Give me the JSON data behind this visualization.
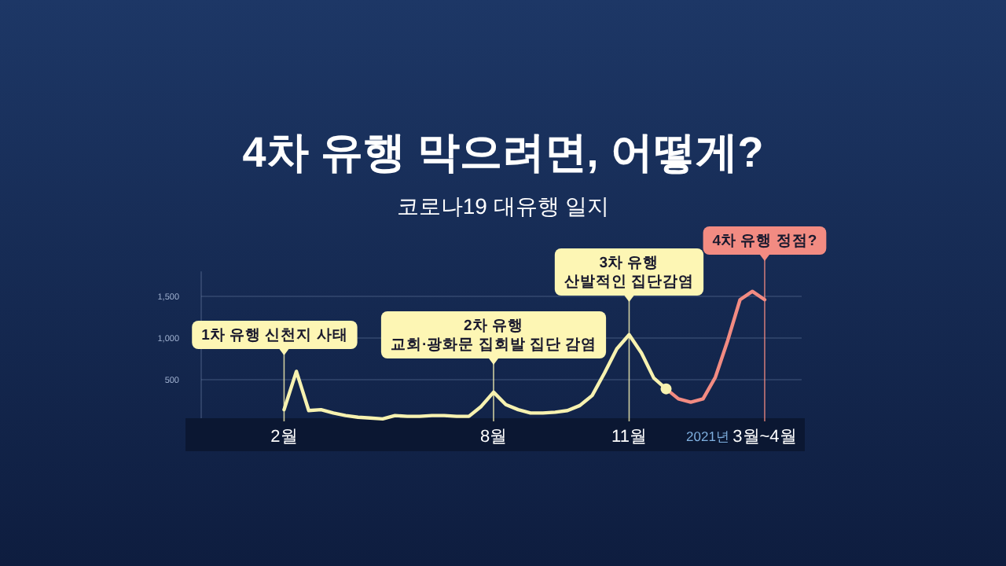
{
  "chart_data": {
    "type": "line",
    "title": "4차 유행 막으려면, 어떻게?",
    "subtitle": "코로나19 대유행 일지",
    "categories": [
      null,
      null,
      null,
      null,
      null,
      null,
      null,
      null,
      "2월",
      null,
      null,
      null,
      null,
      null,
      null,
      null,
      null,
      null,
      null,
      null,
      null,
      null,
      null,
      null,
      null,
      "8월",
      null,
      null,
      null,
      null,
      null,
      null,
      null,
      null,
      null,
      null,
      "11월",
      null,
      null,
      null,
      null,
      null,
      null,
      null,
      null,
      null,
      null,
      "3월~4월",
      null,
      null,
      null
    ],
    "ylim": [
      0,
      1800
    ],
    "yticks": [
      {
        "value": 500,
        "label": "500"
      },
      {
        "value": 1000,
        "label": "1,000"
      },
      {
        "value": 1500,
        "label": "1,500"
      }
    ],
    "grid": "y",
    "annotations": [
      "2021년"
    ],
    "series": [
      {
        "color": "#f7f2b0",
        "values": [
          null,
          null,
          null,
          null,
          null,
          null,
          null,
          null,
          140,
          600,
          130,
          140,
          100,
          70,
          50,
          40,
          30,
          70,
          60,
          60,
          70,
          70,
          60,
          60,
          180,
          350,
          200,
          140,
          100,
          100,
          110,
          130,
          190,
          310,
          580,
          870,
          1040,
          820,
          520,
          390,
          null,
          null,
          null,
          null,
          null,
          null,
          null,
          null,
          null,
          null,
          null
        ]
      },
      {
        "color": "#f28b82",
        "values": [
          null,
          null,
          null,
          null,
          null,
          null,
          null,
          null,
          null,
          null,
          null,
          null,
          null,
          null,
          null,
          null,
          null,
          null,
          null,
          null,
          null,
          null,
          null,
          null,
          null,
          null,
          null,
          null,
          null,
          null,
          null,
          null,
          null,
          null,
          null,
          null,
          null,
          null,
          null,
          390,
          270,
          230,
          270,
          530,
          970,
          1460,
          1560,
          1460,
          null,
          null,
          null
        ]
      },
      {
        "type": "scatter",
        "color": "#f7f2b0",
        "values": [
          null,
          null,
          null,
          null,
          null,
          null,
          null,
          null,
          null,
          null,
          null,
          null,
          null,
          null,
          null,
          null,
          null,
          null,
          null,
          null,
          null,
          null,
          null,
          null,
          null,
          null,
          null,
          null,
          null,
          null,
          null,
          null,
          null,
          null,
          null,
          null,
          null,
          null,
          null,
          390,
          null,
          null,
          null,
          null,
          null,
          null,
          null,
          null,
          null,
          null,
          null
        ]
      }
    ],
    "ref_lines": [
      {
        "axis": "x",
        "value": "2월",
        "label": "1차 유행 신천지 사태",
        "color": "#fdf6b4"
      },
      {
        "axis": "x",
        "value": "8월",
        "label": "2차 유행\n교회·광화문 집회발 집단 감염",
        "color": "#fdf6b4"
      },
      {
        "axis": "x",
        "value": "11월",
        "label": "3차 유행\n산발적인 집단감염",
        "color": "#fdf6b4"
      },
      {
        "axis": "x",
        "value": "3월~4월",
        "label": "4차 유행 정점?",
        "color": "#f28b82"
      }
    ]
  }
}
